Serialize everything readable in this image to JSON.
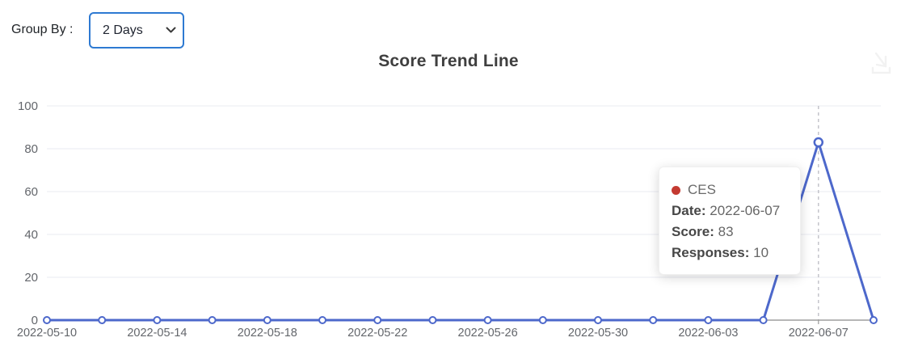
{
  "controls": {
    "group_by_label": "Group By :",
    "group_by_value": "2 Days"
  },
  "header": {
    "title": "Score Trend Line"
  },
  "icons": {
    "export_icon": "download-arrow-into-tray",
    "export_icon_color": "#f2f2f2",
    "chevron_color": "#3a3a3a"
  },
  "tooltip": {
    "series_name": "CES",
    "marker_color": "#c43a31",
    "date_label": "Date:",
    "date_value": "2022-06-07",
    "score_label": "Score:",
    "score_value": "83",
    "responses_label": "Responses:",
    "responses_value": "10"
  },
  "chart_data": {
    "type": "line",
    "title": "Score Trend Line",
    "x": [
      "2022-05-10",
      "2022-05-12",
      "2022-05-14",
      "2022-05-16",
      "2022-05-18",
      "2022-05-20",
      "2022-05-22",
      "2022-05-24",
      "2022-05-26",
      "2022-05-28",
      "2022-05-30",
      "2022-06-01",
      "2022-06-03",
      "2022-06-05",
      "2022-06-07",
      "2022-06-09"
    ],
    "x_label_every": 2,
    "series": [
      {
        "name": "CES",
        "color": "#4d68cb",
        "values": [
          0,
          0,
          0,
          0,
          0,
          0,
          0,
          0,
          0,
          0,
          0,
          0,
          0,
          0,
          83,
          0
        ]
      }
    ],
    "y_ticks": [
      0,
      20,
      40,
      60,
      80,
      100
    ],
    "ylim": [
      0,
      100
    ],
    "grid": true,
    "grid_color": "#e9ebf2",
    "axis_color": "#8a8a8a",
    "tick_color": "#9a9a9a",
    "label_color": "#63666b",
    "crosshair": {
      "x": "2022-06-07",
      "color": "#bcbcc4"
    },
    "hover_point": {
      "x": "2022-06-07",
      "y": 83
    },
    "marker_style": "open-circle",
    "legend_position": "none"
  }
}
